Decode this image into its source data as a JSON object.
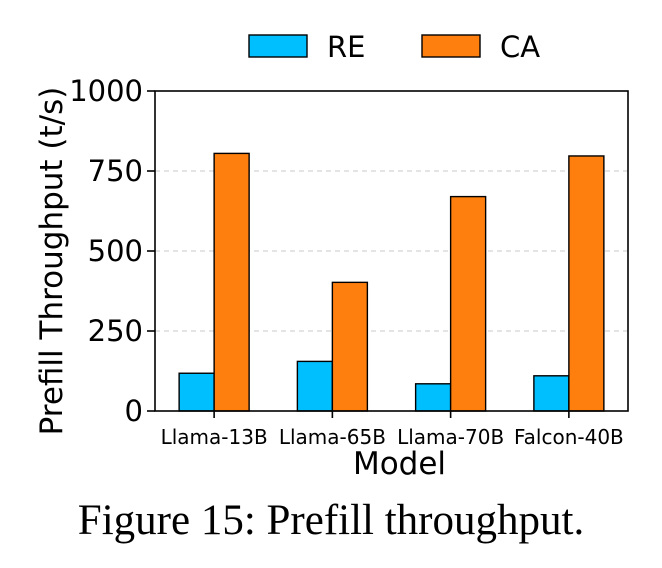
{
  "chart_data": {
    "type": "bar",
    "categories": [
      "Llama-13B",
      "Llama-65B",
      "Llama-70B",
      "Falcon-40B"
    ],
    "series": [
      {
        "name": "RE",
        "values": [
          118,
          155,
          85,
          110
        ],
        "color": "#00bfff"
      },
      {
        "name": "CA",
        "values": [
          805,
          402,
          670,
          797
        ],
        "color": "#ff7f0e"
      }
    ],
    "xlabel": "Model",
    "ylabel": "Prefill Throughput (t/s)",
    "ylim": [
      0,
      1000
    ],
    "yticks": [
      0,
      250,
      500,
      750,
      1000
    ],
    "grid": "horizontal dashed",
    "legend": "top, above plot"
  },
  "caption": "Figure 15: Prefill throughput."
}
